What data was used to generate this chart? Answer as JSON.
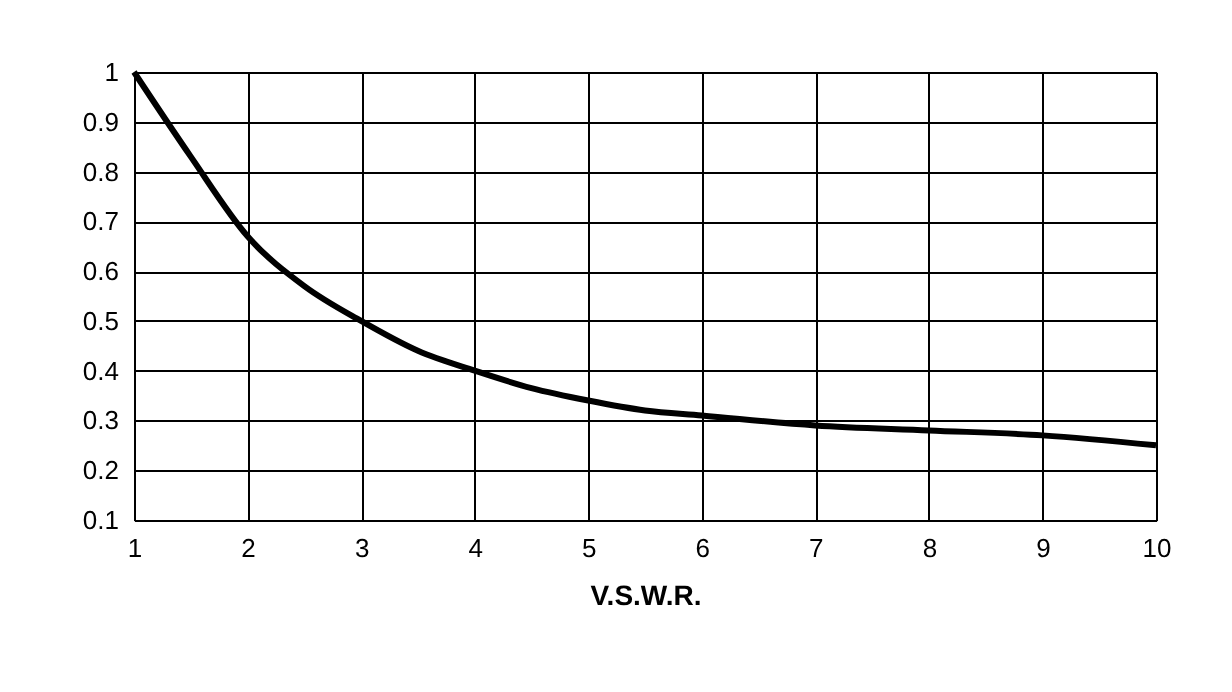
{
  "chart_data": {
    "type": "line",
    "xlabel": "V.S.W.R.",
    "x": [
      1,
      1.5,
      2,
      2.5,
      3,
      3.5,
      4,
      4.5,
      5,
      5.5,
      6,
      7,
      8,
      9,
      10
    ],
    "series": [
      {
        "color": "#000000",
        "values": [
          1.0,
          0.83,
          0.67,
          0.57,
          0.5,
          0.44,
          0.4,
          0.365,
          0.34,
          0.32,
          0.31,
          0.29,
          0.28,
          0.27,
          0.25
        ]
      }
    ],
    "xlim": [
      1,
      10
    ],
    "ylim": [
      0.1,
      1
    ],
    "xticks": [
      1,
      2,
      3,
      4,
      5,
      6,
      7,
      8,
      9,
      10
    ],
    "yticks": [
      0.1,
      0.2,
      0.3,
      0.4,
      0.5,
      0.6,
      0.7,
      0.8,
      0.9,
      1
    ],
    "grid": true,
    "marker": "none",
    "line_style": "solid"
  }
}
